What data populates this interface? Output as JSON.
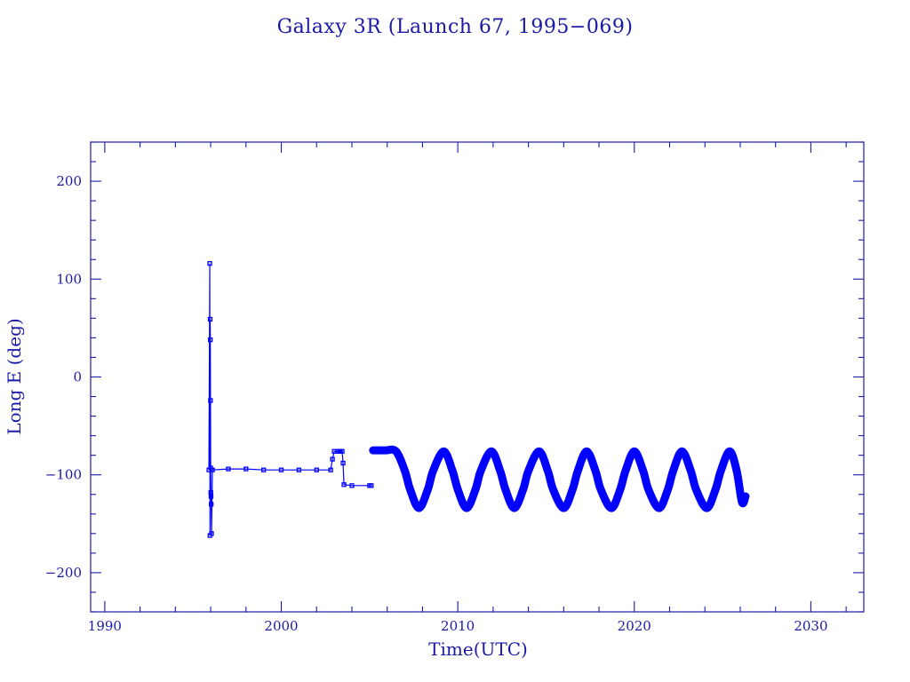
{
  "colors": {
    "axis": "#1a1aa6",
    "series": "#0000ff",
    "background": "#ffffff"
  },
  "chart_data": {
    "type": "line",
    "title": "Galaxy 3R (Launch 67, 1995−069)",
    "xlabel": "Time(UTC)",
    "ylabel": "Long E (deg)",
    "xlim": [
      1989.2,
      2033.0
    ],
    "ylim": [
      -240,
      240
    ],
    "xticks": [
      1990,
      2000,
      2010,
      2020,
      2030
    ],
    "xtick_labels": [
      "1990",
      "2000",
      "2010",
      "2020",
      "2030"
    ],
    "x_minor_step": 2,
    "yticks": [
      200,
      100,
      0,
      -100,
      -200
    ],
    "ytick_labels": [
      "200",
      "100",
      "0",
      "−100",
      "−200"
    ],
    "y_minor_step": 20,
    "grid": false,
    "series": [
      {
        "style": "line-with-markers",
        "x": [
          1995.9,
          1995.95,
          1995.96,
          1995.97,
          1995.98,
          1995.99,
          1996.0,
          1996.01,
          1996.02,
          1996.03,
          1996.05,
          1996.1,
          1997.0,
          1998.0,
          1999.0,
          2000.0,
          2001.0,
          2002.0,
          2002.8,
          2002.9,
          2003.0,
          2003.2,
          2003.3,
          2003.35,
          2003.45,
          2003.5,
          2003.55,
          2004.0,
          2005.0,
          2005.1
        ],
        "y": [
          -95,
          116,
          -162,
          59,
          38,
          -24,
          -93,
          -118,
          -122,
          -130,
          -160,
          -95,
          -94,
          -94,
          -95,
          -95,
          -95,
          -95,
          -95,
          -84,
          -76,
          -76,
          -76,
          -76,
          -76,
          -88,
          -110,
          -111,
          -111,
          -111
        ]
      },
      {
        "style": "oscillation-band",
        "x": [
          2005.2,
          2005.9,
          2006.5,
          2007.0,
          2007.3,
          2007.8,
          2008.3,
          2008.6,
          2009.2,
          2009.7,
          2010.0,
          2010.5,
          2011.0,
          2011.3,
          2011.9,
          2012.4,
          2012.7,
          2013.2,
          2013.7,
          2014.0,
          2014.6,
          2015.1,
          2015.4,
          2016.0,
          2016.5,
          2016.8,
          2017.3,
          2017.8,
          2018.1,
          2018.7,
          2019.2,
          2019.5,
          2020.0,
          2020.5,
          2020.8,
          2021.4,
          2021.9,
          2022.2,
          2022.7,
          2023.2,
          2023.5,
          2024.1,
          2024.6,
          2024.9,
          2025.4,
          2025.8,
          2026.1,
          2026.3
        ],
        "y": [
          -75,
          -75,
          -76,
          -96,
          -115,
          -134,
          -115,
          -96,
          -76,
          -96,
          -115,
          -134,
          -115,
          -96,
          -76,
          -96,
          -115,
          -134,
          -115,
          -96,
          -76,
          -96,
          -115,
          -134,
          -115,
          -96,
          -76,
          -96,
          -115,
          -134,
          -115,
          -96,
          -76,
          -96,
          -115,
          -134,
          -115,
          -96,
          -76,
          -96,
          -115,
          -134,
          -115,
          -96,
          -76,
          -96,
          -128,
          -122
        ]
      }
    ]
  }
}
